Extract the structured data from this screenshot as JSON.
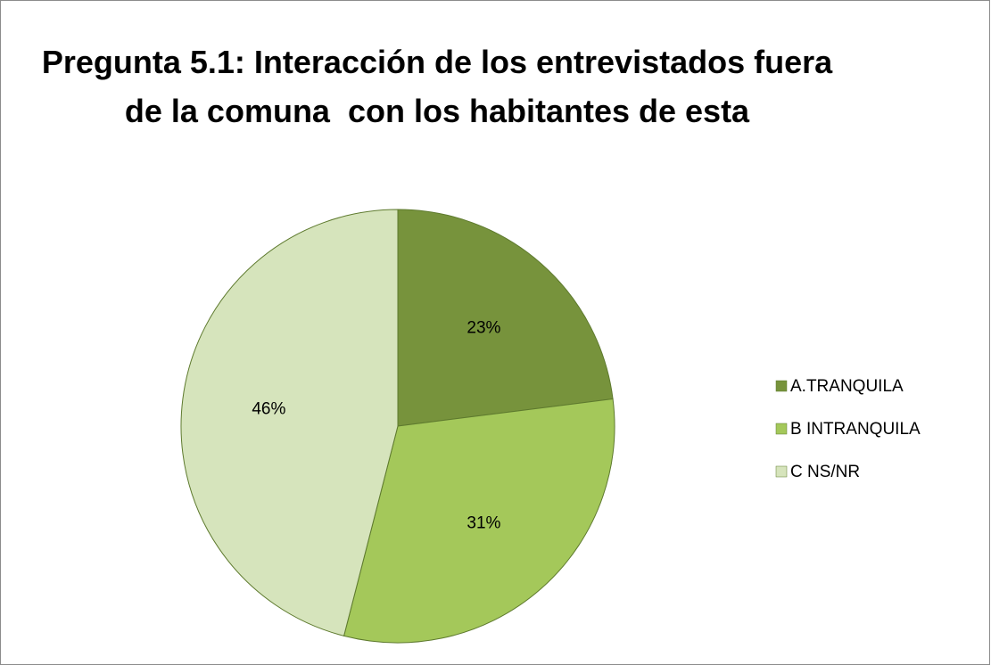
{
  "chart_data": {
    "type": "pie",
    "title": "Pregunta 5.1: Interacción de los entrevistados fuera de la comuna  con los habitantes de esta",
    "categories": [
      "A.TRANQUILA",
      "B INTRANQUILA",
      "C NS/NR"
    ],
    "values": [
      23,
      31,
      46
    ],
    "value_labels": [
      "23%",
      "31%",
      "46%"
    ],
    "colors": [
      "#77933c",
      "#a4c85a",
      "#d6e4bc"
    ],
    "legend": "right"
  }
}
